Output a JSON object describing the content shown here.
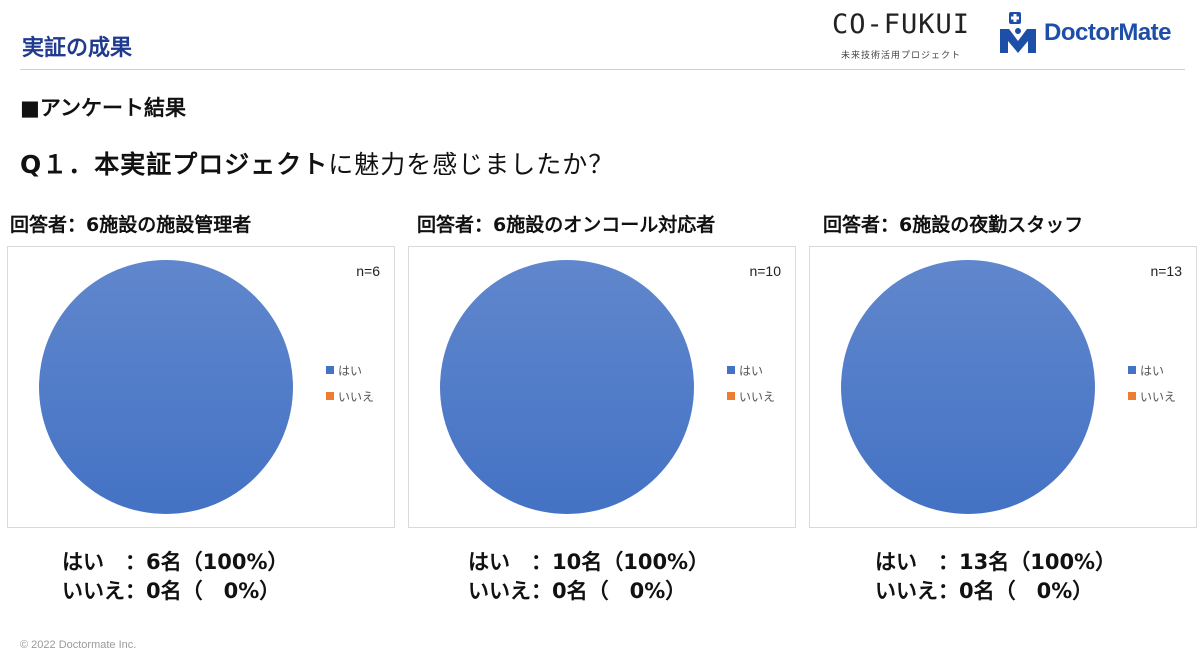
{
  "header": {
    "title": "実証の成果",
    "cofukui_logo": "CO-FUKUI",
    "cofukui_sub": "未来技術活用プロジェクト",
    "doctormate_logo": "DoctorMate"
  },
  "section_label": "■アンケート結果",
  "question": {
    "bold_part": "Q１．本実証プロジェクト",
    "normal_part": "に魅力を感じましたか？"
  },
  "colors": {
    "yes": "#4472c4",
    "no": "#ed7d31",
    "title_blue": "#1f3a8f"
  },
  "panels": [
    {
      "title": "回答者：6施設の施設管理者",
      "n_label": "n=6",
      "yes_line": "はい　：6名（100%）",
      "no_line": "いいえ：0名（　0%）"
    },
    {
      "title": "回答者：6施設のオンコール対応者",
      "n_label": "n=10",
      "yes_line": "はい　：10名（100%）",
      "no_line": "いいえ：0名（　0%）"
    },
    {
      "title": "回答者：6施設の夜勤スタッフ",
      "n_label": "n=13",
      "yes_line": "はい　：13名（100%）",
      "no_line": "いいえ：0名（　0%）"
    }
  ],
  "chart_data": [
    {
      "type": "pie",
      "categories": [
        "はい",
        "いいえ"
      ],
      "values": [
        6,
        0
      ],
      "legend": "right"
    },
    {
      "type": "pie",
      "categories": [
        "はい",
        "いいえ"
      ],
      "values": [
        10,
        0
      ],
      "legend": "right"
    },
    {
      "type": "pie",
      "categories": [
        "はい",
        "いいえ"
      ],
      "values": [
        13,
        0
      ],
      "legend": "right"
    }
  ],
  "copyright": "© 2022 Doctormate Inc."
}
